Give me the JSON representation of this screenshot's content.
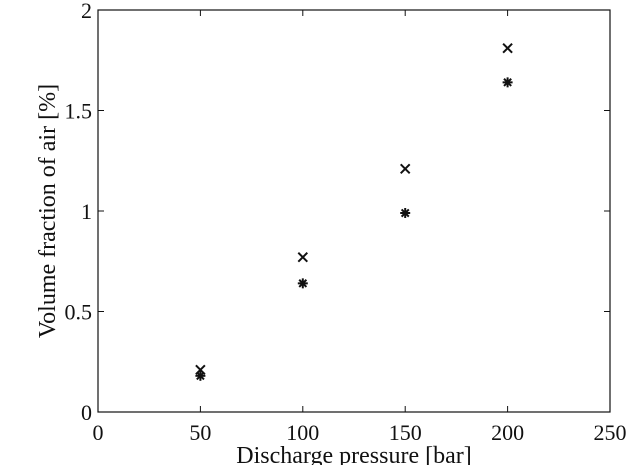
{
  "chart_data": {
    "type": "scatter",
    "title": "",
    "xlabel": "Discharge pressure [bar]",
    "ylabel": "Volume fraction of  air [%]",
    "xlim": [
      0,
      250
    ],
    "ylim": [
      0,
      2
    ],
    "xticks": [
      0,
      50,
      100,
      150,
      200,
      250
    ],
    "yticks": [
      0,
      0.5,
      1,
      1.5,
      2
    ],
    "xtick_labels": [
      "0",
      "50",
      "100",
      "150",
      "200",
      "250"
    ],
    "ytick_labels": [
      "0",
      "0.5",
      "1",
      "1.5",
      "2"
    ],
    "grid": false,
    "legend": "none",
    "series": [
      {
        "marker": "x",
        "x": [
          50,
          100,
          150,
          200
        ],
        "y": [
          0.21,
          0.77,
          1.21,
          1.81
        ]
      },
      {
        "marker": "asterisk",
        "x": [
          50,
          100,
          150,
          200
        ],
        "y": [
          0.18,
          0.64,
          0.99,
          1.64
        ]
      }
    ],
    "colors": {
      "axis": "#111111",
      "markers": "#111111",
      "background": "#ffffff"
    }
  }
}
